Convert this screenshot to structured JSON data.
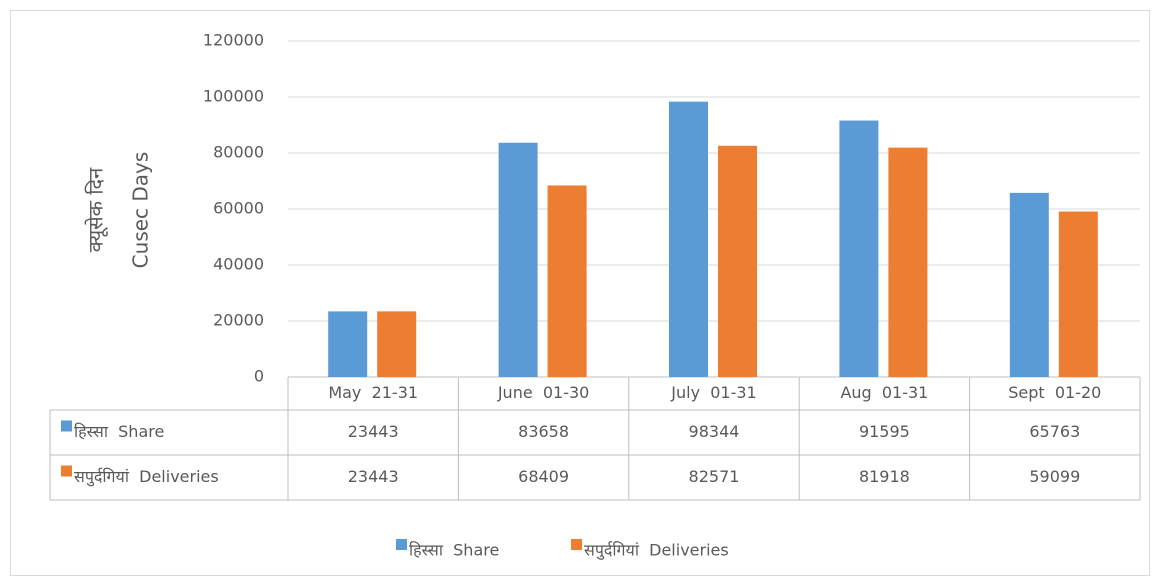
{
  "chart_data": {
    "type": "bar",
    "ylabel": [
      "क्यूसेक दिन",
      "Cusec Days"
    ],
    "categories": [
      "May  21-31",
      "June  01-30",
      "July  01-31",
      "Aug  01-31",
      "Sept  01-20"
    ],
    "series": [
      {
        "name": "हिस्सा  Share",
        "color": "#5b9bd5",
        "values": [
          23443,
          83658,
          98344,
          91595,
          65763
        ]
      },
      {
        "name": "सपुर्दगियां  Deliveries",
        "color": "#ed7d31",
        "values": [
          23443,
          68409,
          82571,
          81918,
          59099
        ]
      }
    ],
    "ylim": [
      0,
      120000
    ],
    "yticks": [
      0,
      20000,
      40000,
      60000,
      80000,
      100000,
      120000
    ],
    "grid": true,
    "legend": "bottom"
  }
}
